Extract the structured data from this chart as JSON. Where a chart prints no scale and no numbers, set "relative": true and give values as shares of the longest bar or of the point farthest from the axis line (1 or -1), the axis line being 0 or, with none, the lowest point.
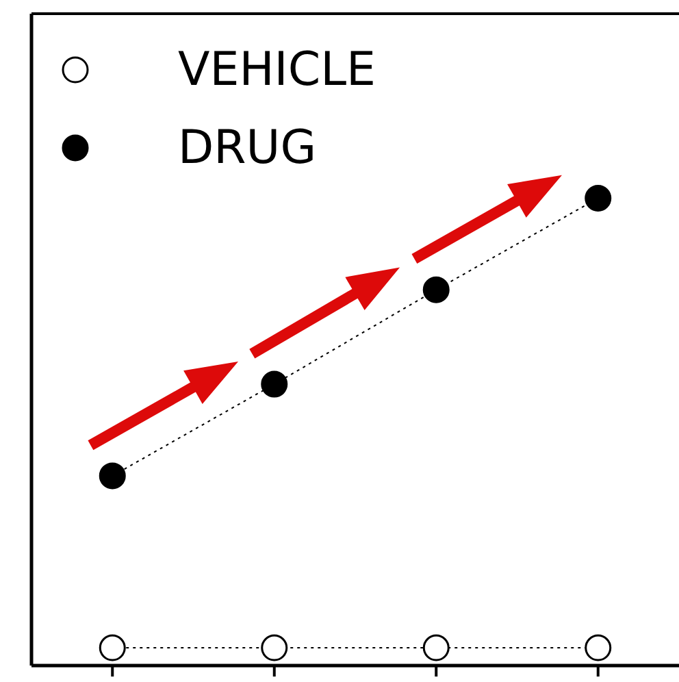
{
  "chart_data": {
    "type": "line",
    "relative": true,
    "categories": [
      null,
      null,
      null,
      null
    ],
    "legend": "top left",
    "marker": "circle",
    "line_style": "dotted",
    "series": [
      {
        "name": "VEHICLE",
        "color": "#ffffff",
        "values": [
          0.038,
          0.038,
          0.038,
          0.038
        ]
      },
      {
        "name": "DRUG",
        "color": "#000000",
        "values": [
          0.406,
          0.602,
          0.804,
          1
        ]
      }
    ]
  }
}
